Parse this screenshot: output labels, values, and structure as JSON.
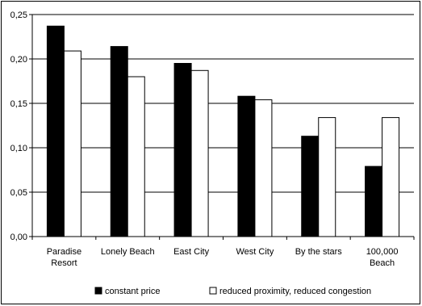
{
  "chart_data": {
    "type": "bar",
    "categories": [
      [
        "Paradise",
        "Resort"
      ],
      [
        "Lonely Beach"
      ],
      [
        "East City"
      ],
      [
        "West City"
      ],
      [
        "By the stars"
      ],
      [
        "100,000",
        "Beach"
      ]
    ],
    "series": [
      {
        "name": "constant price",
        "color": "#000000",
        "values": [
          0.237,
          0.214,
          0.195,
          0.158,
          0.113,
          0.079
        ]
      },
      {
        "name": "reduced proximity, reduced congestion",
        "color": "#ffffff",
        "values": [
          0.209,
          0.18,
          0.187,
          0.154,
          0.134,
          0.134
        ]
      }
    ],
    "yticks": [
      "0,00",
      "0,05",
      "0,10",
      "0,15",
      "0,20",
      "0,25"
    ],
    "ylim": [
      0,
      0.25
    ],
    "grid": true,
    "legend_position": "bottom"
  }
}
